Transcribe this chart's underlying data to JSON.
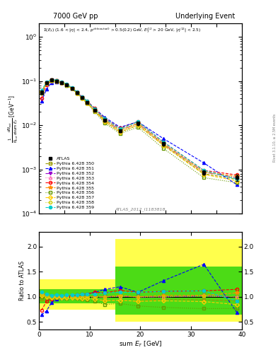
{
  "title_left": "7000 GeV pp",
  "title_right": "Underlying Event",
  "annotation": "ATLAS_2012_I1183818",
  "right_label": "Rivet 3.1.10, ≥ 2.5M events",
  "ylabel_main": "$\\frac{1}{N_{evt}}\\frac{d N_{evt}}{d\\mathrm{sum}\\ E_T}$ [GeV$^{-1}$]",
  "ylabel_ratio": "Ratio to ATLAS",
  "xlabel": "sum $E_T$ [GeV]",
  "xlim": [
    0,
    40
  ],
  "ylim_main": [
    0.0001,
    2.0
  ],
  "ylim_ratio": [
    0.35,
    2.3
  ],
  "yticks_ratio": [
    0.5,
    1.0,
    1.5,
    2.0
  ],
  "atlas_x": [
    0.5,
    1.5,
    2.5,
    3.5,
    4.5,
    5.5,
    6.5,
    7.5,
    8.5,
    9.5,
    11.0,
    13.0,
    16.0,
    19.5,
    24.5,
    32.5,
    39.0
  ],
  "atlas_y": [
    0.055,
    0.09,
    0.105,
    0.1,
    0.093,
    0.082,
    0.068,
    0.054,
    0.042,
    0.033,
    0.022,
    0.013,
    0.0075,
    0.011,
    0.0038,
    0.00085,
    0.00065
  ],
  "atlas_yerr": [
    0.005,
    0.005,
    0.005,
    0.005,
    0.004,
    0.004,
    0.003,
    0.003,
    0.002,
    0.002,
    0.001,
    0.001,
    0.0005,
    0.0008,
    0.0003,
    0.0001,
    0.0001
  ],
  "series": [
    {
      "label": "Pythia 6.428 350",
      "color": "#999900",
      "marker": "s",
      "marker_filled": false,
      "linestyle": "--",
      "y": [
        0.052,
        0.088,
        0.103,
        0.098,
        0.091,
        0.08,
        0.067,
        0.053,
        0.041,
        0.032,
        0.021,
        0.012,
        0.007,
        0.01,
        0.0036,
        0.0008,
        0.0006
      ],
      "ratio": [
        0.95,
        0.98,
        0.98,
        0.98,
        0.98,
        0.976,
        0.985,
        0.981,
        0.976,
        0.97,
        0.955,
        0.923,
        0.933,
        0.91,
        0.95,
        0.94,
        0.92
      ]
    },
    {
      "label": "Pythia 6.428 351",
      "color": "#0000ff",
      "marker": "^",
      "marker_filled": true,
      "linestyle": "--",
      "y": [
        0.035,
        0.065,
        0.093,
        0.095,
        0.091,
        0.082,
        0.069,
        0.056,
        0.044,
        0.035,
        0.024,
        0.015,
        0.009,
        0.012,
        0.005,
        0.0014,
        0.00045
      ],
      "ratio": [
        0.64,
        0.72,
        0.89,
        0.95,
        0.98,
        1.0,
        1.01,
        1.04,
        1.05,
        1.06,
        1.09,
        1.15,
        1.2,
        1.09,
        1.32,
        1.65,
        0.69
      ]
    },
    {
      "label": "Pythia 6.428 352",
      "color": "#9900cc",
      "marker": "v",
      "marker_filled": true,
      "linestyle": "-.",
      "y": [
        0.058,
        0.092,
        0.105,
        0.101,
        0.093,
        0.082,
        0.068,
        0.054,
        0.042,
        0.033,
        0.022,
        0.013,
        0.0076,
        0.011,
        0.0038,
        0.00087,
        0.00065
      ],
      "ratio": [
        1.05,
        1.02,
        1.0,
        1.01,
        1.0,
        1.0,
        1.0,
        1.0,
        1.0,
        1.0,
        1.0,
        1.0,
        1.01,
        1.0,
        1.0,
        1.02,
        1.0
      ]
    },
    {
      "label": "Pythia 6.428 353",
      "color": "#ff69b4",
      "marker": "^",
      "marker_filled": false,
      "linestyle": ":",
      "y": [
        0.057,
        0.091,
        0.104,
        0.1,
        0.093,
        0.082,
        0.068,
        0.054,
        0.042,
        0.033,
        0.022,
        0.013,
        0.0076,
        0.011,
        0.0038,
        0.00087,
        0.00065
      ],
      "ratio": [
        1.04,
        1.01,
        0.99,
        1.0,
        1.0,
        1.0,
        1.0,
        1.0,
        1.0,
        1.0,
        1.0,
        1.0,
        1.01,
        1.0,
        1.0,
        1.02,
        1.0
      ]
    },
    {
      "label": "Pythia 6.428 354",
      "color": "#ff0000",
      "marker": "o",
      "marker_filled": false,
      "linestyle": "--",
      "y": [
        0.04,
        0.082,
        0.101,
        0.099,
        0.093,
        0.083,
        0.069,
        0.056,
        0.044,
        0.035,
        0.024,
        0.014,
        0.0085,
        0.012,
        0.0042,
        0.00095,
        0.00075
      ],
      "ratio": [
        0.73,
        0.91,
        0.96,
        0.99,
        1.0,
        1.01,
        1.01,
        1.04,
        1.05,
        1.06,
        1.09,
        1.08,
        1.13,
        1.09,
        1.11,
        1.12,
        1.15
      ]
    },
    {
      "label": "Pythia 6.428 355",
      "color": "#ff8c00",
      "marker": "*",
      "marker_filled": true,
      "linestyle": "--",
      "y": [
        0.058,
        0.092,
        0.105,
        0.101,
        0.093,
        0.082,
        0.068,
        0.054,
        0.042,
        0.033,
        0.022,
        0.013,
        0.0077,
        0.011,
        0.0039,
        0.00088,
        0.0007
      ],
      "ratio": [
        1.05,
        1.02,
        1.0,
        1.01,
        1.0,
        1.0,
        1.0,
        1.0,
        1.0,
        1.0,
        1.0,
        1.0,
        1.03,
        1.0,
        1.03,
        1.03,
        1.08
      ]
    },
    {
      "label": "Pythia 6.428 356",
      "color": "#669900",
      "marker": "s",
      "marker_filled": false,
      "linestyle": ":",
      "y": [
        0.055,
        0.089,
        0.103,
        0.099,
        0.092,
        0.08,
        0.067,
        0.052,
        0.04,
        0.031,
        0.02,
        0.011,
        0.0065,
        0.009,
        0.003,
        0.00065,
        0.0005
      ],
      "ratio": [
        1.0,
        0.99,
        0.98,
        0.99,
        0.99,
        0.976,
        0.985,
        0.963,
        0.952,
        0.939,
        0.909,
        0.846,
        0.867,
        0.818,
        0.789,
        0.765,
        0.769
      ]
    },
    {
      "label": "Pythia 6.428 357",
      "color": "#ffcc00",
      "marker": "D",
      "marker_filled": false,
      "linestyle": "--",
      "y": [
        0.056,
        0.09,
        0.104,
        0.1,
        0.092,
        0.081,
        0.067,
        0.053,
        0.041,
        0.032,
        0.021,
        0.012,
        0.007,
        0.01,
        0.0035,
        0.00077,
        0.00055
      ],
      "ratio": [
        1.02,
        1.0,
        0.99,
        1.0,
        0.99,
        0.988,
        0.985,
        0.981,
        0.976,
        0.97,
        0.955,
        0.923,
        0.933,
        0.91,
        0.921,
        0.906,
        0.846
      ]
    },
    {
      "label": "Pythia 6.428 358",
      "color": "#cccc00",
      "marker": "o",
      "marker_filled": false,
      "linestyle": ":",
      "y": [
        0.057,
        0.091,
        0.105,
        0.101,
        0.093,
        0.082,
        0.068,
        0.054,
        0.042,
        0.033,
        0.022,
        0.013,
        0.0076,
        0.011,
        0.0038,
        0.00087,
        0.00065
      ],
      "ratio": [
        1.04,
        1.01,
        1.0,
        1.01,
        1.0,
        1.0,
        1.0,
        1.0,
        1.0,
        1.0,
        1.0,
        1.0,
        1.01,
        1.0,
        1.0,
        1.02,
        1.0
      ]
    },
    {
      "label": "Pythia 6.428 359",
      "color": "#00cccc",
      "marker": "o",
      "marker_filled": true,
      "linestyle": "--",
      "y": [
        0.06,
        0.095,
        0.108,
        0.104,
        0.096,
        0.085,
        0.071,
        0.056,
        0.044,
        0.035,
        0.023,
        0.014,
        0.0082,
        0.012,
        0.0042,
        0.00095,
        0.0006
      ],
      "ratio": [
        1.09,
        1.06,
        1.03,
        1.04,
        1.03,
        1.04,
        1.04,
        1.04,
        1.05,
        1.06,
        1.05,
        1.08,
        1.09,
        1.09,
        1.11,
        1.12,
        0.92
      ]
    }
  ]
}
